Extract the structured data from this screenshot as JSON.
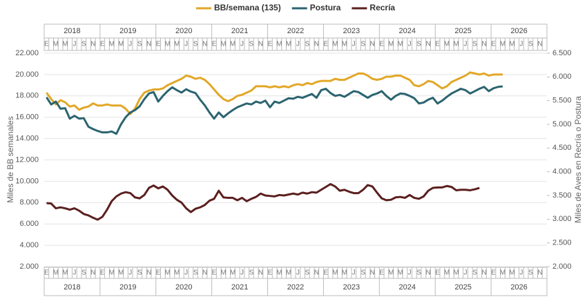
{
  "chart_data": {
    "type": "line",
    "ylabel": "Miles de BB semanales",
    "y2label": "Miles de Aves en Recría o Postura",
    "years": [
      "2018",
      "2019",
      "2020",
      "2021",
      "2022",
      "2023",
      "2024",
      "2025",
      "2026"
    ],
    "categories": [
      "E",
      null,
      "M",
      null,
      "M",
      null,
      "J",
      null,
      "S",
      null,
      "N",
      null,
      "E",
      null,
      "M",
      null,
      "M",
      null,
      "J",
      null,
      "S",
      null,
      "N",
      null,
      "E",
      null,
      "M",
      null,
      "M",
      null,
      "J",
      null,
      "S",
      null,
      "N",
      null,
      "E",
      null,
      "M",
      null,
      "M",
      null,
      "J",
      null,
      "S",
      null,
      "N",
      null,
      "E",
      null,
      "M",
      null,
      "M",
      null,
      "J",
      null,
      "S",
      null,
      "N",
      null,
      "E",
      null,
      "M",
      null,
      "M",
      null,
      "J",
      null,
      "S",
      null,
      "N",
      null,
      "E",
      null,
      "M",
      null,
      "M",
      null,
      "J",
      null,
      "S",
      null,
      "N",
      null,
      "E",
      null,
      "M",
      null,
      "M",
      null,
      "J",
      null,
      "S",
      null,
      "N",
      null,
      "E",
      null,
      "M",
      null,
      "M",
      null,
      "J",
      null,
      "S",
      null,
      "N",
      null
    ],
    "ylim": [
      2000,
      22000
    ],
    "yticks": [
      {
        "value": 2000,
        "label": "2.000"
      },
      {
        "value": 4000,
        "label": "4.000"
      },
      {
        "value": 6000,
        "label": "6.000"
      },
      {
        "value": 8000,
        "label": "8.000"
      },
      {
        "value": 10000,
        "label": "10.000"
      },
      {
        "value": 12000,
        "label": "12.000"
      },
      {
        "value": 14000,
        "label": "14.000"
      },
      {
        "value": 16000,
        "label": "16.000"
      },
      {
        "value": 18000,
        "label": "18.000"
      },
      {
        "value": 20000,
        "label": "20.000"
      },
      {
        "value": 22000,
        "label": "22.000"
      }
    ],
    "y2lim": [
      2000,
      6500
    ],
    "y2ticks": [
      {
        "value": 2000,
        "label": "2.000"
      },
      {
        "value": 2500,
        "label": "2.500"
      },
      {
        "value": 3000,
        "label": "3.000"
      },
      {
        "value": 3500,
        "label": "3.500"
      },
      {
        "value": 4000,
        "label": "4.000"
      },
      {
        "value": 4500,
        "label": "4.500"
      },
      {
        "value": 5000,
        "label": "5.000"
      },
      {
        "value": 5500,
        "label": "5.500"
      },
      {
        "value": 6000,
        "label": "6.000"
      },
      {
        "value": 6500,
        "label": "6.500"
      }
    ],
    "grid": true,
    "series": [
      {
        "name": "BB/semana (135)",
        "color": "#e2a727",
        "values": [
          18300,
          17700,
          17200,
          17600,
          17400,
          17000,
          17100,
          16700,
          16900,
          17000,
          17300,
          17100,
          17100,
          17200,
          17100,
          17100,
          17100,
          16800,
          16300,
          16800,
          17700,
          18300,
          18500,
          18600,
          18600,
          18700,
          19000,
          19200,
          19400,
          19600,
          19900,
          19800,
          19600,
          19700,
          19500,
          19100,
          18600,
          18100,
          17700,
          17500,
          17700,
          18000,
          18100,
          18300,
          18500,
          18900,
          18900,
          18900,
          18800,
          18900,
          18800,
          18900,
          18800,
          19000,
          19100,
          19000,
          19200,
          19100,
          19300,
          19400,
          19400,
          19400,
          19600,
          19500,
          19500,
          19700,
          19900,
          20100,
          20100,
          19900,
          19600,
          19500,
          19600,
          19800,
          19800,
          19900,
          19900,
          19700,
          19500,
          19000,
          18900,
          19100,
          19400,
          19300,
          19000,
          18700,
          18900,
          19300,
          19500,
          19700,
          19900,
          20200,
          20100,
          20000,
          20100,
          19900,
          20000,
          20000,
          20000,
          null,
          null,
          null,
          null,
          null,
          null,
          null,
          null,
          null
        ]
      },
      {
        "name": "Postura",
        "axis": "y2",
        "color": "#2b6470",
        "values": [
          5570,
          5420,
          5480,
          5330,
          5340,
          5120,
          5180,
          5120,
          5130,
          4950,
          4900,
          4860,
          4830,
          4830,
          4850,
          4800,
          5000,
          5150,
          5250,
          5300,
          5380,
          5530,
          5650,
          5680,
          5480,
          5600,
          5700,
          5780,
          5720,
          5670,
          5740,
          5690,
          5660,
          5520,
          5400,
          5250,
          5120,
          5250,
          5150,
          5230,
          5300,
          5360,
          5400,
          5440,
          5420,
          5480,
          5450,
          5500,
          5360,
          5480,
          5450,
          5500,
          5550,
          5540,
          5580,
          5560,
          5600,
          5640,
          5560,
          5720,
          5750,
          5660,
          5600,
          5620,
          5580,
          5640,
          5700,
          5680,
          5620,
          5560,
          5620,
          5650,
          5700,
          5600,
          5520,
          5600,
          5650,
          5640,
          5600,
          5550,
          5440,
          5460,
          5520,
          5560,
          5440,
          5500,
          5580,
          5650,
          5700,
          5750,
          5720,
          5650,
          5700,
          5750,
          5790,
          5700,
          5760,
          5790,
          5800,
          null,
          null,
          null,
          null,
          null,
          null,
          null,
          null,
          null
        ]
      },
      {
        "name": "Recría",
        "axis": "y2",
        "color": "#5b1f1f",
        "values": [
          3340,
          3330,
          3230,
          3250,
          3230,
          3200,
          3230,
          3180,
          3110,
          3080,
          3030,
          2990,
          3050,
          3200,
          3380,
          3480,
          3540,
          3570,
          3550,
          3460,
          3440,
          3510,
          3660,
          3710,
          3650,
          3690,
          3620,
          3500,
          3410,
          3350,
          3230,
          3150,
          3220,
          3250,
          3300,
          3390,
          3430,
          3600,
          3460,
          3450,
          3450,
          3400,
          3450,
          3380,
          3430,
          3470,
          3540,
          3500,
          3490,
          3480,
          3510,
          3500,
          3520,
          3540,
          3520,
          3560,
          3540,
          3570,
          3560,
          3620,
          3680,
          3740,
          3690,
          3600,
          3620,
          3580,
          3550,
          3550,
          3620,
          3720,
          3690,
          3560,
          3440,
          3400,
          3410,
          3460,
          3470,
          3450,
          3510,
          3450,
          3430,
          3480,
          3600,
          3660,
          3670,
          3670,
          3700,
          3680,
          3610,
          3620,
          3620,
          3610,
          3630,
          3660,
          null,
          null,
          null,
          null,
          null,
          null,
          null,
          null,
          null,
          null,
          null,
          null,
          null,
          null
        ]
      }
    ]
  }
}
